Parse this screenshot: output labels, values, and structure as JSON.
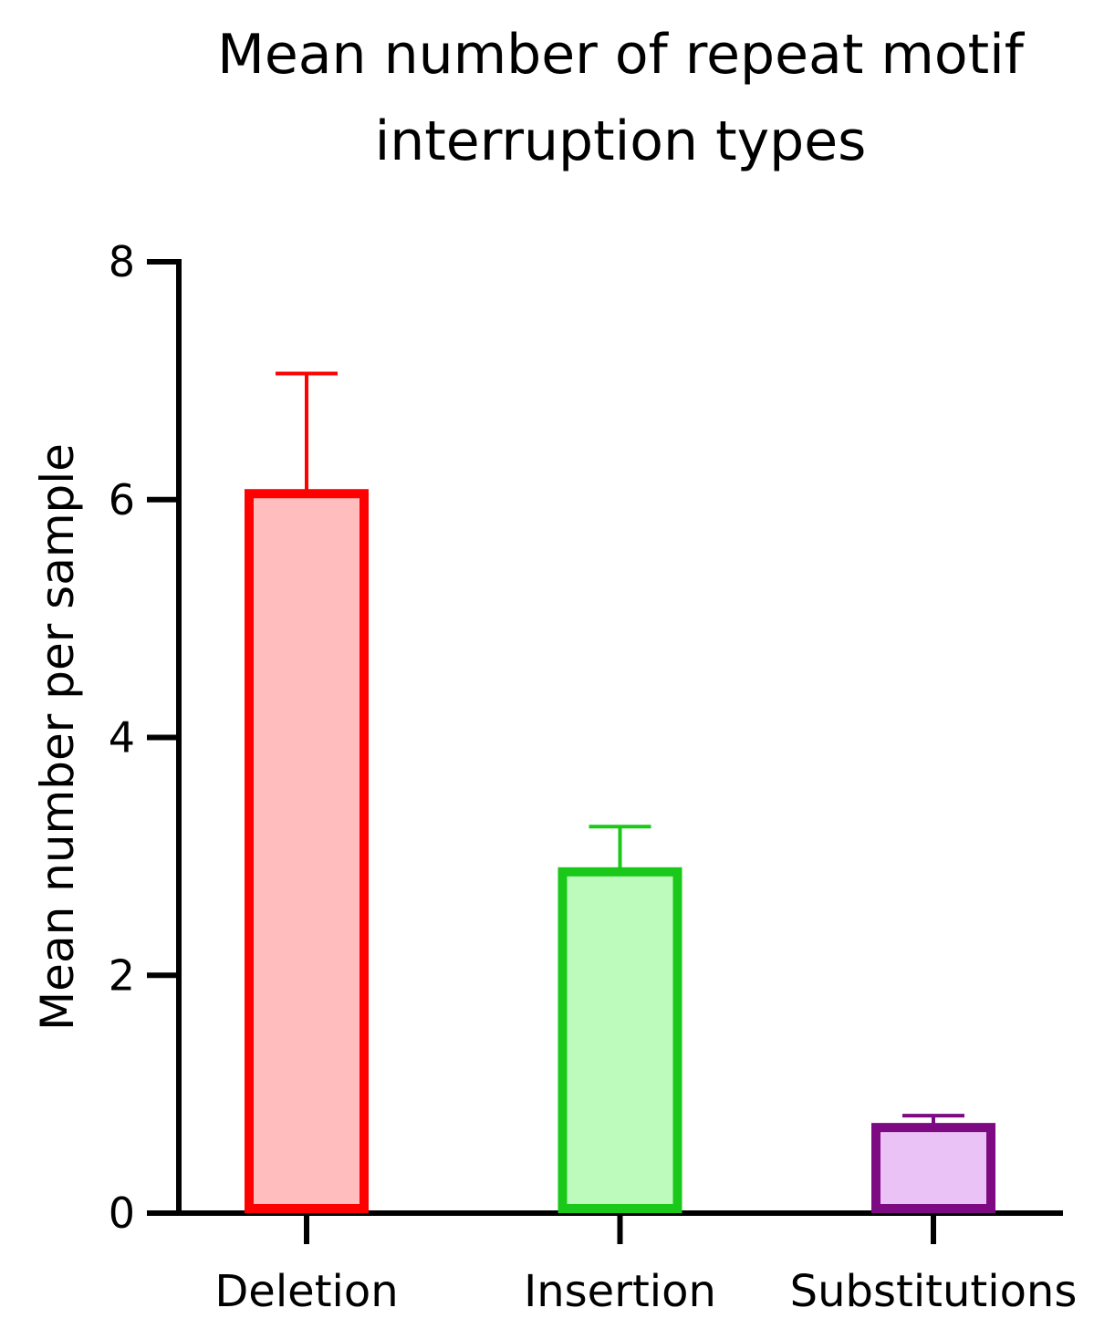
{
  "chart_data": {
    "type": "bar",
    "title_lines": [
      "Mean number of repeat motif",
      "interruption types"
    ],
    "xlabel": "",
    "ylabel": "Mean number per sample",
    "ylim": [
      0,
      8
    ],
    "yticks": [
      "0",
      "2",
      "4",
      "6",
      "8"
    ],
    "grid": false,
    "categories": [
      "Deletion",
      "Insertion",
      "Substitutions"
    ],
    "values": [
      6.05,
      2.87,
      0.72
    ],
    "error_upper": [
      7.06,
      3.25,
      0.82
    ],
    "bar_stroke_colors": [
      "#ff0000",
      "#19c819",
      "#7d0a82"
    ],
    "bar_fill_colors": [
      "#ffbdbd",
      "#bdfbbd",
      "#ebc2f5"
    ]
  }
}
